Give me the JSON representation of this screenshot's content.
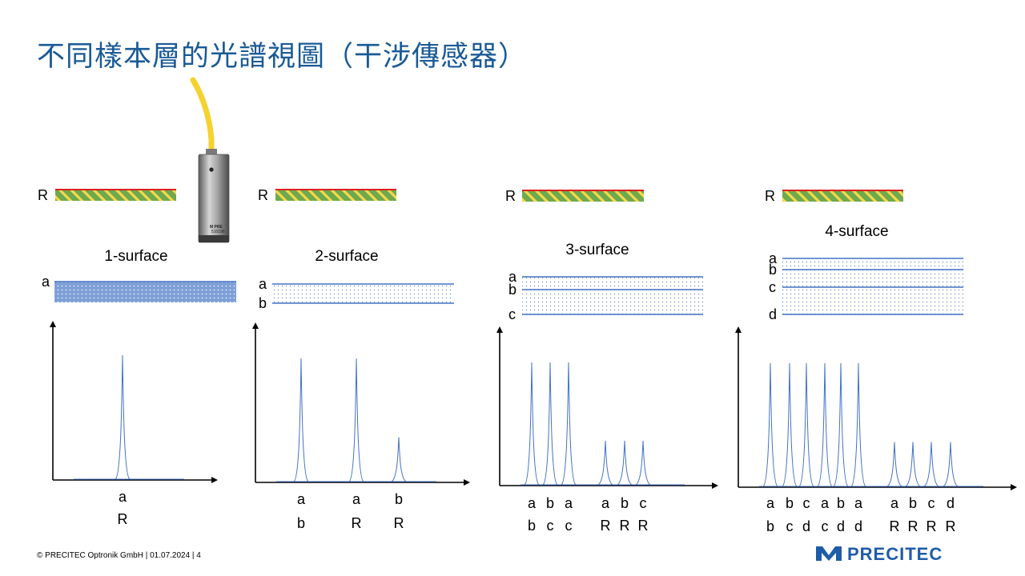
{
  "title": "不同樣本層的光譜視圖（干涉傳感器）",
  "footer": "© PRECITEC  Optronik GmbH | 01.07.2024 | 4",
  "logo": {
    "text": "PRECITEC",
    "icon": "precitec-logo-icon",
    "color": "#1f5ca8"
  },
  "sensor": {
    "model_text": "510196",
    "icon": "interferometric-sensor-probe-icon",
    "cable_color": "#f5d22e"
  },
  "colors": {
    "title": "#1a5a96",
    "surface_line": "#4472c4",
    "spectrum_line": "#4472c4",
    "reference_line": "#e02020"
  },
  "reference_label": "R",
  "panels": [
    {
      "name": "1-surface",
      "title": "1-surface",
      "layers": [
        "a"
      ],
      "peaks": [
        {
          "top": "a",
          "bottom": "R",
          "amplitude": 1.0
        }
      ]
    },
    {
      "name": "2-surface",
      "title": "2-surface",
      "layers": [
        "a",
        "b"
      ],
      "peaks": [
        {
          "top": "a",
          "bottom": "b",
          "amplitude": 1.0
        },
        {
          "top": "a",
          "bottom": "R",
          "amplitude": 1.0
        },
        {
          "top": "b",
          "bottom": "R",
          "amplitude": 0.36
        }
      ]
    },
    {
      "name": "3-surface",
      "title": "3-surface",
      "layers": [
        "a",
        "b",
        "c"
      ],
      "peaks": [
        {
          "top": "a",
          "bottom": "b",
          "amplitude": 1.0
        },
        {
          "top": "b",
          "bottom": "c",
          "amplitude": 1.0
        },
        {
          "top": "a",
          "bottom": "c",
          "amplitude": 1.0
        },
        {
          "top": "a",
          "bottom": "R",
          "amplitude": 0.36
        },
        {
          "top": "b",
          "bottom": "R",
          "amplitude": 0.36
        },
        {
          "top": "c",
          "bottom": "R",
          "amplitude": 0.36
        }
      ]
    },
    {
      "name": "4-surface",
      "title": "4-surface",
      "layers": [
        "a",
        "b",
        "c",
        "d"
      ],
      "peaks": [
        {
          "top": "a",
          "bottom": "b",
          "amplitude": 1.0
        },
        {
          "top": "b",
          "bottom": "c",
          "amplitude": 1.0
        },
        {
          "top": "c",
          "bottom": "d",
          "amplitude": 1.0
        },
        {
          "top": "a",
          "bottom": "c",
          "amplitude": 1.0
        },
        {
          "top": "b",
          "bottom": "d",
          "amplitude": 1.0
        },
        {
          "top": "a",
          "bottom": "d",
          "amplitude": 1.0
        },
        {
          "top": "a",
          "bottom": "R",
          "amplitude": 0.36
        },
        {
          "top": "b",
          "bottom": "R",
          "amplitude": 0.36
        },
        {
          "top": "c",
          "bottom": "R",
          "amplitude": 0.36
        },
        {
          "top": "d",
          "bottom": "R",
          "amplitude": 0.36
        }
      ]
    }
  ]
}
